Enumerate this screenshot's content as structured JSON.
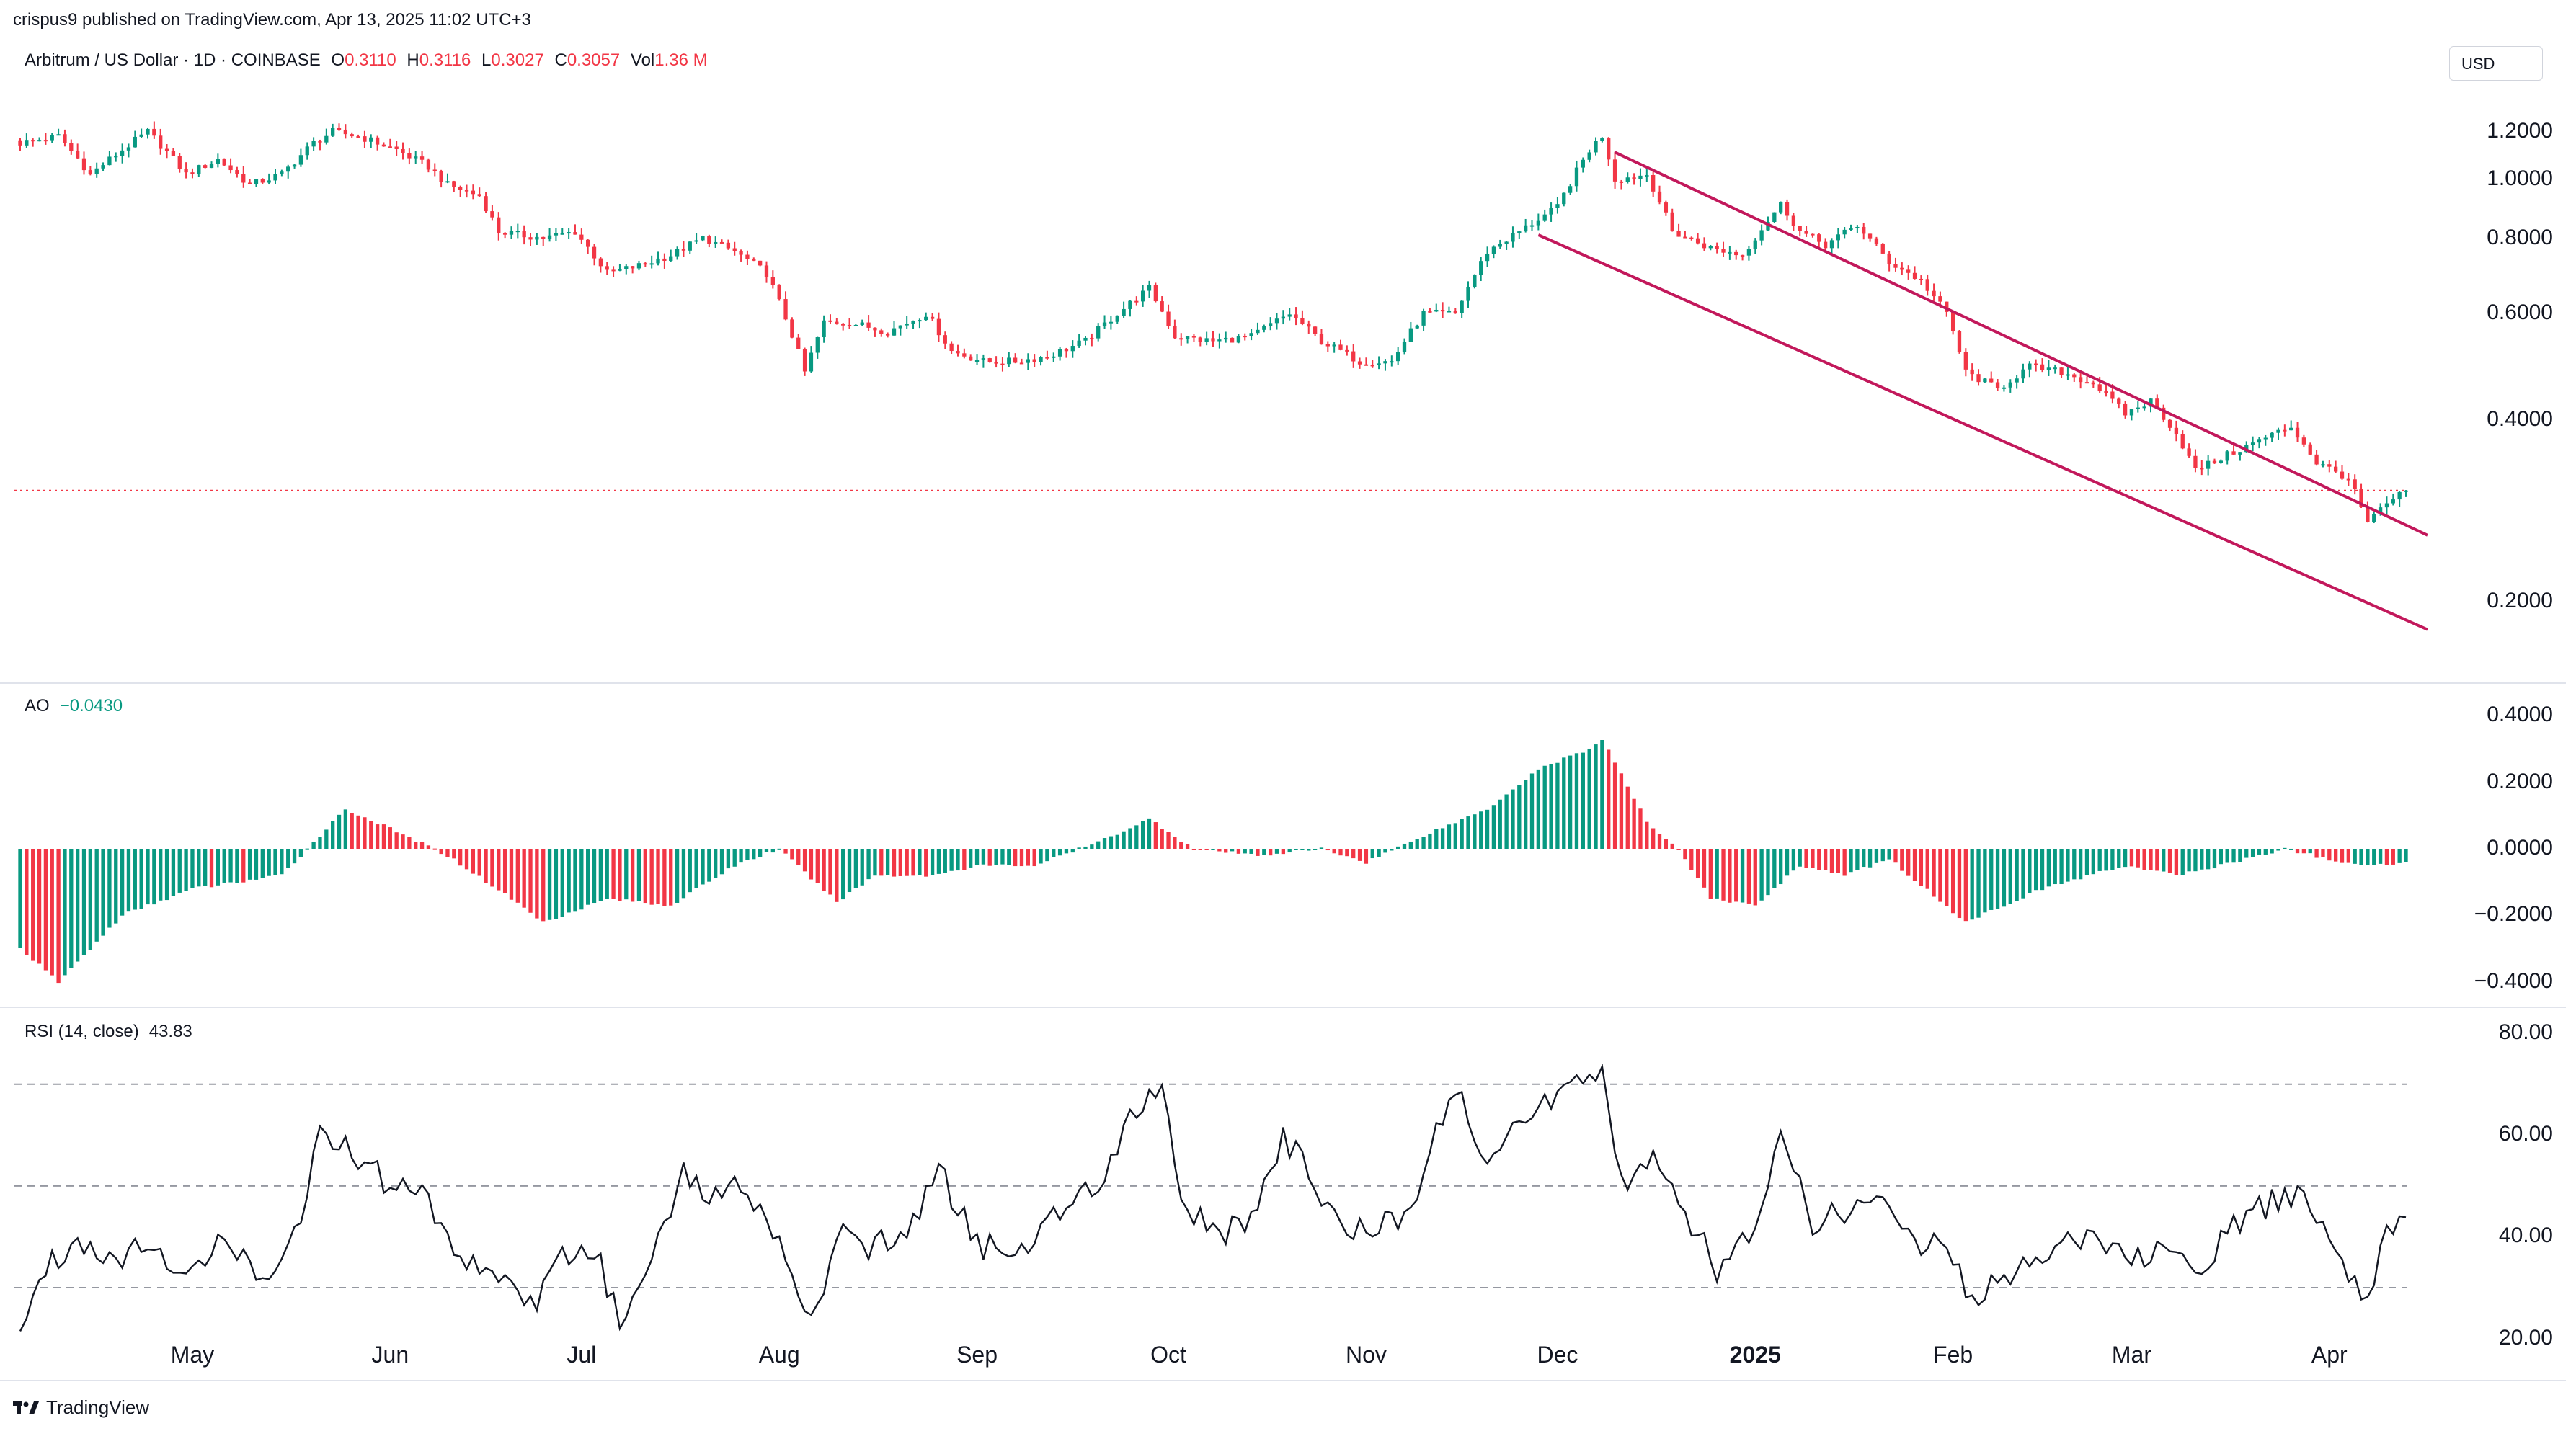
{
  "header": {
    "publisher": "crispus9 published on TradingView.com, Apr 13, 2025 11:02 UTC+3"
  },
  "legend": {
    "symbol": "Arbitrum / US Dollar · 1D · COINBASE",
    "open_label": "O",
    "open": "0.3110",
    "high_label": "H",
    "high": "0.3116",
    "low_label": "L",
    "low": "0.3027",
    "close_label": "C",
    "close": "0.3057",
    "vol_label": "Vol",
    "vol": "1.36 M"
  },
  "currency_button": "USD",
  "indicators": {
    "ao_label": "AO",
    "ao_value": "−0.0430",
    "rsi_label": "RSI (14, close)",
    "rsi_value": "43.83"
  },
  "brand": "TradingView",
  "colors": {
    "up": "#089981",
    "down": "#f23645",
    "wedge": "#c2185b",
    "rsi_line": "#131722"
  },
  "chart_data": {
    "type": "candlestick",
    "title": "Arbitrum / US Dollar · 1D · COINBASE",
    "x_axis_labels": [
      "May",
      "Jun",
      "Jul",
      "Aug",
      "Sep",
      "Oct",
      "Nov",
      "Dec",
      "2025",
      "Feb",
      "Mar",
      "Apr"
    ],
    "x_label_dates": [
      "2024-05-01",
      "2024-06-01",
      "2024-07-01",
      "2024-08-01",
      "2024-09-01",
      "2024-10-01",
      "2024-11-01",
      "2024-12-01",
      "2025-01-01",
      "2025-02-01",
      "2025-03-01",
      "2025-04-01"
    ],
    "date_range": [
      "2024-04-04",
      "2025-04-13"
    ],
    "price_axis": {
      "ticks": [
        "1.2000",
        "1.0000",
        "0.8000",
        "0.6000",
        "0.4000",
        "0.2000"
      ],
      "ylim": [
        0.15,
        1.35
      ]
    },
    "close_anchors": [
      [
        "2024-04-04",
        1.15
      ],
      [
        "2024-04-10",
        1.18
      ],
      [
        "2024-04-15",
        1.02
      ],
      [
        "2024-04-20",
        1.12
      ],
      [
        "2024-04-24",
        1.2
      ],
      [
        "2024-04-30",
        1.02
      ],
      [
        "2024-05-05",
        1.08
      ],
      [
        "2024-05-10",
        0.98
      ],
      [
        "2024-05-15",
        1.02
      ],
      [
        "2024-05-20",
        1.15
      ],
      [
        "2024-05-23",
        1.2
      ],
      [
        "2024-05-27",
        1.18
      ],
      [
        "2024-06-02",
        1.12
      ],
      [
        "2024-06-07",
        1.05
      ],
      [
        "2024-06-10",
        0.98
      ],
      [
        "2024-06-15",
        0.94
      ],
      [
        "2024-06-18",
        0.82
      ],
      [
        "2024-06-25",
        0.8
      ],
      [
        "2024-06-30",
        0.82
      ],
      [
        "2024-07-05",
        0.7
      ],
      [
        "2024-07-10",
        0.72
      ],
      [
        "2024-07-15",
        0.75
      ],
      [
        "2024-07-20",
        0.8
      ],
      [
        "2024-07-25",
        0.76
      ],
      [
        "2024-07-30",
        0.7
      ],
      [
        "2024-08-05",
        0.48
      ],
      [
        "2024-08-08",
        0.58
      ],
      [
        "2024-08-12",
        0.58
      ],
      [
        "2024-08-18",
        0.56
      ],
      [
        "2024-08-24",
        0.6
      ],
      [
        "2024-08-28",
        0.52
      ],
      [
        "2024-09-02",
        0.5
      ],
      [
        "2024-09-07",
        0.5
      ],
      [
        "2024-09-12",
        0.51
      ],
      [
        "2024-09-18",
        0.54
      ],
      [
        "2024-09-23",
        0.6
      ],
      [
        "2024-09-28",
        0.66
      ],
      [
        "2024-10-02",
        0.55
      ],
      [
        "2024-10-08",
        0.54
      ],
      [
        "2024-10-14",
        0.55
      ],
      [
        "2024-10-20",
        0.6
      ],
      [
        "2024-10-25",
        0.54
      ],
      [
        "2024-10-31",
        0.5
      ],
      [
        "2024-11-05",
        0.5
      ],
      [
        "2024-11-10",
        0.6
      ],
      [
        "2024-11-15",
        0.6
      ],
      [
        "2024-11-20",
        0.76
      ],
      [
        "2024-11-25",
        0.82
      ],
      [
        "2024-12-01",
        0.9
      ],
      [
        "2024-12-06",
        1.12
      ],
      [
        "2024-12-08",
        1.18
      ],
      [
        "2024-12-10",
        1.0
      ],
      [
        "2024-12-15",
        1.02
      ],
      [
        "2024-12-19",
        0.82
      ],
      [
        "2024-12-25",
        0.77
      ],
      [
        "2024-12-30",
        0.75
      ],
      [
        "2025-01-05",
        0.91
      ],
      [
        "2025-01-08",
        0.82
      ],
      [
        "2025-01-12",
        0.78
      ],
      [
        "2025-01-17",
        0.84
      ],
      [
        "2025-01-22",
        0.73
      ],
      [
        "2025-01-27",
        0.68
      ],
      [
        "2025-01-31",
        0.6
      ],
      [
        "2025-02-03",
        0.48
      ],
      [
        "2025-02-08",
        0.45
      ],
      [
        "2025-02-13",
        0.49
      ],
      [
        "2025-02-18",
        0.48
      ],
      [
        "2025-02-23",
        0.46
      ],
      [
        "2025-02-28",
        0.41
      ],
      [
        "2025-03-04",
        0.43
      ],
      [
        "2025-03-08",
        0.38
      ],
      [
        "2025-03-11",
        0.33
      ],
      [
        "2025-03-16",
        0.35
      ],
      [
        "2025-03-21",
        0.37
      ],
      [
        "2025-03-26",
        0.39
      ],
      [
        "2025-03-30",
        0.34
      ],
      [
        "2025-04-04",
        0.32
      ],
      [
        "2025-04-07",
        0.27
      ],
      [
        "2025-04-10",
        0.29
      ],
      [
        "2025-04-13",
        0.3057
      ]
    ],
    "reference_price_line": 0.3057,
    "falling_wedge": {
      "upper_line": [
        [
          "2024-12-10",
          1.11
        ],
        [
          "2025-04-13",
          0.265
        ]
      ],
      "lower_line": [
        [
          "2024-11-28",
          0.81
        ],
        [
          "2025-04-13",
          0.185
        ]
      ]
    },
    "ao": {
      "label": "AO",
      "value": -0.043,
      "ticks": [
        "0.4000",
        "0.2000",
        "0.0000",
        "−0.2000",
        "−0.4000"
      ],
      "ylim": [
        -0.45,
        0.45
      ],
      "anchors": [
        [
          "2024-04-04",
          -0.3
        ],
        [
          "2024-04-10",
          -0.4
        ],
        [
          "2024-04-20",
          -0.2
        ],
        [
          "2024-05-01",
          -0.12
        ],
        [
          "2024-05-15",
          -0.08
        ],
        [
          "2024-05-25",
          0.12
        ],
        [
          "2024-06-01",
          0.06
        ],
        [
          "2024-06-10",
          -0.02
        ],
        [
          "2024-06-20",
          -0.15
        ],
        [
          "2024-06-25",
          -0.22
        ],
        [
          "2024-07-05",
          -0.15
        ],
        [
          "2024-07-15",
          -0.17
        ],
        [
          "2024-07-25",
          -0.05
        ],
        [
          "2024-08-01",
          0.0
        ],
        [
          "2024-08-10",
          -0.16
        ],
        [
          "2024-08-16",
          -0.08
        ],
        [
          "2024-08-25",
          -0.08
        ],
        [
          "2024-09-01",
          -0.05
        ],
        [
          "2024-09-10",
          -0.05
        ],
        [
          "2024-09-20",
          0.02
        ],
        [
          "2024-09-28",
          0.09
        ],
        [
          "2024-10-05",
          0.0
        ],
        [
          "2024-10-15",
          -0.02
        ],
        [
          "2024-10-25",
          0.0
        ],
        [
          "2024-11-01",
          -0.04
        ],
        [
          "2024-11-10",
          0.04
        ],
        [
          "2024-11-20",
          0.12
        ],
        [
          "2024-11-28",
          0.24
        ],
        [
          "2024-12-06",
          0.3
        ],
        [
          "2024-12-08",
          0.33
        ],
        [
          "2024-12-15",
          0.08
        ],
        [
          "2024-12-20",
          0.0
        ],
        [
          "2024-12-25",
          -0.15
        ],
        [
          "2025-01-01",
          -0.17
        ],
        [
          "2025-01-08",
          -0.05
        ],
        [
          "2025-01-15",
          -0.08
        ],
        [
          "2025-01-22",
          -0.03
        ],
        [
          "2025-02-03",
          -0.22
        ],
        [
          "2025-02-15",
          -0.12
        ],
        [
          "2025-02-28",
          -0.05
        ],
        [
          "2025-03-08",
          -0.08
        ],
        [
          "2025-03-15",
          -0.05
        ],
        [
          "2025-03-25",
          0.0
        ],
        [
          "2025-04-05",
          -0.05
        ],
        [
          "2025-04-13",
          -0.043
        ]
      ]
    },
    "rsi": {
      "label": "RSI (14, close)",
      "value": 43.83,
      "ticks": [
        "80.00",
        "60.00",
        "40.00",
        "20.00"
      ],
      "ylim": [
        14,
        82
      ],
      "levels": [
        70,
        50,
        30
      ],
      "anchors": [
        [
          "2024-04-04",
          22
        ],
        [
          "2024-04-08",
          34
        ],
        [
          "2024-04-13",
          40
        ],
        [
          "2024-04-18",
          36
        ],
        [
          "2024-04-23",
          38
        ],
        [
          "2024-04-28",
          34
        ],
        [
          "2024-05-05",
          38
        ],
        [
          "2024-05-12",
          33
        ],
        [
          "2024-05-17",
          40
        ],
        [
          "2024-05-21",
          60
        ],
        [
          "2024-05-26",
          57
        ],
        [
          "2024-06-01",
          50
        ],
        [
          "2024-06-07",
          48
        ],
        [
          "2024-06-12",
          35
        ],
        [
          "2024-06-17",
          34
        ],
        [
          "2024-06-23",
          26
        ],
        [
          "2024-06-28",
          36
        ],
        [
          "2024-07-03",
          38
        ],
        [
          "2024-07-07",
          22
        ],
        [
          "2024-07-12",
          38
        ],
        [
          "2024-07-17",
          52
        ],
        [
          "2024-07-22",
          48
        ],
        [
          "2024-07-27",
          50
        ],
        [
          "2024-08-01",
          40
        ],
        [
          "2024-08-06",
          22
        ],
        [
          "2024-08-10",
          40
        ],
        [
          "2024-08-15",
          38
        ],
        [
          "2024-08-21",
          40
        ],
        [
          "2024-08-26",
          54
        ],
        [
          "2024-08-31",
          40
        ],
        [
          "2024-09-05",
          36
        ],
        [
          "2024-09-10",
          39
        ],
        [
          "2024-09-15",
          48
        ],
        [
          "2024-09-20",
          50
        ],
        [
          "2024-09-25",
          65
        ],
        [
          "2024-09-30",
          70
        ],
        [
          "2024-10-03",
          48
        ],
        [
          "2024-10-08",
          40
        ],
        [
          "2024-10-13",
          42
        ],
        [
          "2024-10-19",
          60
        ],
        [
          "2024-10-24",
          50
        ],
        [
          "2024-10-29",
          40
        ],
        [
          "2024-11-03",
          42
        ],
        [
          "2024-11-08",
          45
        ],
        [
          "2024-11-12",
          64
        ],
        [
          "2024-11-16",
          66
        ],
        [
          "2024-11-20",
          52
        ],
        [
          "2024-11-25",
          62
        ],
        [
          "2024-11-30",
          67
        ],
        [
          "2024-12-05",
          72
        ],
        [
          "2024-12-08",
          74
        ],
        [
          "2024-12-11",
          50
        ],
        [
          "2024-12-16",
          55
        ],
        [
          "2024-12-21",
          44
        ],
        [
          "2024-12-26",
          34
        ],
        [
          "2024-12-31",
          40
        ],
        [
          "2025-01-05",
          58
        ],
        [
          "2025-01-10",
          43
        ],
        [
          "2025-01-15",
          45
        ],
        [
          "2025-01-20",
          48
        ],
        [
          "2025-01-25",
          40
        ],
        [
          "2025-01-30",
          38
        ],
        [
          "2025-02-04",
          28
        ],
        [
          "2025-02-09",
          32
        ],
        [
          "2025-02-14",
          36
        ],
        [
          "2025-02-19",
          40
        ],
        [
          "2025-02-24",
          38
        ],
        [
          "2025-03-01",
          35
        ],
        [
          "2025-03-06",
          40
        ],
        [
          "2025-03-11",
          30
        ],
        [
          "2025-03-16",
          42
        ],
        [
          "2025-03-22",
          46
        ],
        [
          "2025-03-27",
          48
        ],
        [
          "2025-04-01",
          38
        ],
        [
          "2025-04-07",
          28
        ],
        [
          "2025-04-10",
          40
        ],
        [
          "2025-04-13",
          43.83
        ]
      ]
    }
  }
}
